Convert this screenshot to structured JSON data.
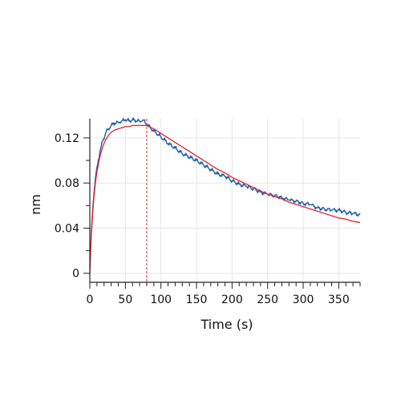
{
  "chart_data": {
    "type": "line",
    "title": "",
    "xlabel": "Time (s)",
    "ylabel": "nm",
    "xlim": [
      0,
      380
    ],
    "ylim": [
      -0.008,
      0.137
    ],
    "xticks": [
      0,
      50,
      100,
      150,
      200,
      250,
      300,
      350
    ],
    "xtick_labels": [
      "0",
      "50",
      "100",
      "150",
      "200",
      "250",
      "300",
      "350"
    ],
    "yticks": [
      0,
      0.04,
      0.08,
      0.12
    ],
    "ytick_labels": [
      "0",
      "0.04",
      "0.08",
      "0.12"
    ],
    "grid": true,
    "legend": "none",
    "annotations": {
      "vertical_dashed_lines_x": [
        0,
        80
      ]
    },
    "series": [
      {
        "role": "measured",
        "color": "#1f5fa8",
        "x": [
          0,
          2,
          4,
          6,
          8,
          10,
          14,
          18,
          22,
          26,
          30,
          35,
          40,
          45,
          50,
          55,
          60,
          65,
          70,
          75,
          80,
          85,
          90,
          100,
          110,
          120,
          130,
          140,
          150,
          160,
          170,
          180,
          190,
          200,
          210,
          220,
          230,
          240,
          250,
          260,
          270,
          280,
          290,
          300,
          310,
          320,
          330,
          340,
          350,
          360,
          370,
          380
        ],
        "y": [
          0.005,
          0.035,
          0.056,
          0.072,
          0.085,
          0.094,
          0.107,
          0.117,
          0.124,
          0.128,
          0.131,
          0.133,
          0.134,
          0.135,
          0.136,
          0.135,
          0.136,
          0.135,
          0.135,
          0.136,
          0.132,
          0.129,
          0.126,
          0.121,
          0.115,
          0.111,
          0.106,
          0.103,
          0.1,
          0.096,
          0.092,
          0.088,
          0.086,
          0.082,
          0.079,
          0.077,
          0.075,
          0.072,
          0.07,
          0.069,
          0.067,
          0.065,
          0.064,
          0.062,
          0.061,
          0.058,
          0.057,
          0.056,
          0.056,
          0.054,
          0.053,
          0.052
        ]
      },
      {
        "role": "fit",
        "color": "#e8202a",
        "x": [
          0,
          2,
          4,
          6,
          8,
          10,
          14,
          18,
          22,
          26,
          30,
          35,
          40,
          45,
          50,
          55,
          60,
          65,
          70,
          75,
          80,
          90,
          100,
          110,
          120,
          130,
          140,
          150,
          160,
          170,
          180,
          190,
          200,
          210,
          220,
          230,
          240,
          250,
          260,
          270,
          280,
          290,
          300,
          310,
          320,
          330,
          340,
          350,
          360,
          370,
          380
        ],
        "y": [
          0.0,
          0.032,
          0.053,
          0.069,
          0.081,
          0.09,
          0.103,
          0.112,
          0.118,
          0.122,
          0.125,
          0.127,
          0.128,
          0.129,
          0.13,
          0.13,
          0.131,
          0.131,
          0.131,
          0.131,
          0.131,
          0.128,
          0.124,
          0.12,
          0.116,
          0.112,
          0.108,
          0.104,
          0.1,
          0.096,
          0.092,
          0.089,
          0.085,
          0.082,
          0.079,
          0.076,
          0.073,
          0.07,
          0.068,
          0.066,
          0.063,
          0.061,
          0.059,
          0.057,
          0.055,
          0.053,
          0.051,
          0.049,
          0.048,
          0.046,
          0.045
        ]
      }
    ]
  }
}
